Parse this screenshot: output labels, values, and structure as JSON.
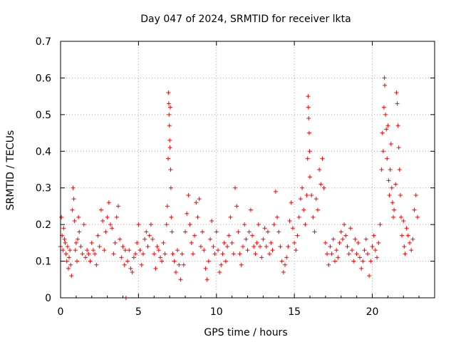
{
  "chart_data": {
    "type": "scatter",
    "title": "Day 047 of 2024, SRMTID for receiver lkta",
    "xlabel": "GPS time / hours",
    "ylabel": "SRMTID / TECUs",
    "xlim": [
      0,
      24
    ],
    "ylim": [
      0,
      0.7
    ],
    "xticks": [
      0,
      5,
      10,
      15,
      20
    ],
    "xtick_labels": [
      "0",
      "5",
      "10",
      "15",
      "20"
    ],
    "yticks": [
      0,
      0.1,
      0.2,
      0.3,
      0.4,
      0.5,
      0.6,
      0.7
    ],
    "ytick_labels": [
      "0",
      "0.1",
      "0.2",
      "0.3",
      "0.4",
      "0.5",
      "0.6",
      "0.7"
    ],
    "grid": true,
    "marker": "+",
    "color": "#ff0000",
    "series": [
      {
        "name": "SRMTID",
        "points": [
          [
            0.0,
            0.14
          ],
          [
            0.05,
            0.22
          ],
          [
            0.1,
            0.17
          ],
          [
            0.15,
            0.13
          ],
          [
            0.2,
            0.19
          ],
          [
            0.25,
            0.16
          ],
          [
            0.3,
            0.15
          ],
          [
            0.35,
            0.12
          ],
          [
            0.4,
            0.1
          ],
          [
            0.45,
            0.14
          ],
          [
            0.5,
            0.08
          ],
          [
            0.55,
            0.11
          ],
          [
            0.6,
            0.13
          ],
          [
            0.65,
            0.09
          ],
          [
            0.7,
            0.06
          ],
          [
            0.75,
            0.24
          ],
          [
            0.8,
            0.3
          ],
          [
            0.85,
            0.27
          ],
          [
            0.9,
            0.21
          ],
          [
            0.95,
            0.13
          ],
          [
            1.0,
            0.15
          ],
          [
            1.05,
            0.1
          ],
          [
            1.1,
            0.16
          ],
          [
            1.15,
            0.22
          ],
          [
            1.2,
            0.18
          ],
          [
            1.3,
            0.14
          ],
          [
            1.4,
            0.12
          ],
          [
            1.5,
            0.2
          ],
          [
            1.6,
            0.11
          ],
          [
            1.7,
            0.13
          ],
          [
            1.8,
            0.12
          ],
          [
            1.9,
            0.1
          ],
          [
            2.0,
            0.15
          ],
          [
            2.1,
            0.13
          ],
          [
            2.2,
            0.12
          ],
          [
            2.3,
            0.09
          ],
          [
            2.4,
            0.17
          ],
          [
            2.5,
            0.14
          ],
          [
            2.6,
            0.24
          ],
          [
            2.7,
            0.21
          ],
          [
            2.8,
            0.13
          ],
          [
            2.9,
            0.18
          ],
          [
            3.0,
            0.22
          ],
          [
            3.1,
            0.26
          ],
          [
            3.2,
            0.2
          ],
          [
            3.3,
            0.19
          ],
          [
            3.4,
            0.12
          ],
          [
            3.5,
            0.15
          ],
          [
            3.6,
            0.22
          ],
          [
            3.7,
            0.25
          ],
          [
            3.8,
            0.16
          ],
          [
            3.9,
            0.11
          ],
          [
            4.0,
            0.14
          ],
          [
            4.1,
            0.09
          ],
          [
            4.15,
            0.13
          ],
          [
            4.2,
            0.0
          ],
          [
            4.3,
            0.1
          ],
          [
            4.4,
            0.13
          ],
          [
            4.5,
            0.08
          ],
          [
            4.6,
            0.07
          ],
          [
            4.7,
            0.11
          ],
          [
            4.8,
            0.12
          ],
          [
            4.9,
            0.15
          ],
          [
            5.0,
            0.2
          ],
          [
            5.1,
            0.13
          ],
          [
            5.2,
            0.09
          ],
          [
            5.3,
            0.12
          ],
          [
            5.4,
            0.16
          ],
          [
            5.5,
            0.18
          ],
          [
            5.6,
            0.14
          ],
          [
            5.7,
            0.17
          ],
          [
            5.8,
            0.2
          ],
          [
            5.9,
            0.16
          ],
          [
            6.0,
            0.12
          ],
          [
            6.1,
            0.08
          ],
          [
            6.2,
            0.14
          ],
          [
            6.3,
            0.13
          ],
          [
            6.4,
            0.11
          ],
          [
            6.5,
            0.1
          ],
          [
            6.6,
            0.15
          ],
          [
            6.7,
            0.12
          ],
          [
            6.8,
            0.2
          ],
          [
            6.85,
            0.25
          ],
          [
            6.9,
            0.38
          ],
          [
            6.92,
            0.56
          ],
          [
            6.94,
            0.53
          ],
          [
            6.96,
            0.5
          ],
          [
            6.98,
            0.47
          ],
          [
            7.0,
            0.43
          ],
          [
            7.02,
            0.41
          ],
          [
            7.04,
            0.52
          ],
          [
            7.06,
            0.35
          ],
          [
            7.08,
            0.3
          ],
          [
            7.1,
            0.22
          ],
          [
            7.15,
            0.18
          ],
          [
            7.2,
            0.12
          ],
          [
            7.3,
            0.1
          ],
          [
            7.4,
            0.07
          ],
          [
            7.5,
            0.13
          ],
          [
            7.6,
            0.09
          ],
          [
            7.7,
            0.05
          ],
          [
            7.8,
            0.12
          ],
          [
            7.9,
            0.09
          ],
          [
            8.0,
            0.18
          ],
          [
            8.1,
            0.23
          ],
          [
            8.2,
            0.28
          ],
          [
            8.3,
            0.2
          ],
          [
            8.4,
            0.15
          ],
          [
            8.5,
            0.12
          ],
          [
            8.6,
            0.17
          ],
          [
            8.7,
            0.26
          ],
          [
            8.8,
            0.22
          ],
          [
            8.9,
            0.27
          ],
          [
            9.0,
            0.14
          ],
          [
            9.1,
            0.18
          ],
          [
            9.2,
            0.13
          ],
          [
            9.3,
            0.08
          ],
          [
            9.4,
            0.05
          ],
          [
            9.5,
            0.1
          ],
          [
            9.6,
            0.16
          ],
          [
            9.7,
            0.21
          ],
          [
            9.8,
            0.14
          ],
          [
            9.9,
            0.12
          ],
          [
            10.0,
            0.18
          ],
          [
            10.1,
            0.13
          ],
          [
            10.2,
            0.07
          ],
          [
            10.3,
            0.09
          ],
          [
            10.4,
            0.12
          ],
          [
            10.5,
            0.15
          ],
          [
            10.6,
            0.1
          ],
          [
            10.7,
            0.14
          ],
          [
            10.8,
            0.17
          ],
          [
            10.9,
            0.22
          ],
          [
            11.0,
            0.15
          ],
          [
            11.1,
            0.12
          ],
          [
            11.2,
            0.3
          ],
          [
            11.3,
            0.25
          ],
          [
            11.4,
            0.18
          ],
          [
            11.5,
            0.12
          ],
          [
            11.6,
            0.09
          ],
          [
            11.7,
            0.14
          ],
          [
            11.8,
            0.2
          ],
          [
            11.9,
            0.16
          ],
          [
            12.0,
            0.13
          ],
          [
            12.1,
            0.18
          ],
          [
            12.2,
            0.24
          ],
          [
            12.3,
            0.17
          ],
          [
            12.4,
            0.14
          ],
          [
            12.5,
            0.12
          ],
          [
            12.6,
            0.15
          ],
          [
            12.7,
            0.2
          ],
          [
            12.8,
            0.14
          ],
          [
            12.9,
            0.11
          ],
          [
            13.0,
            0.16
          ],
          [
            13.1,
            0.19
          ],
          [
            13.2,
            0.14
          ],
          [
            13.3,
            0.18
          ],
          [
            13.4,
            0.12
          ],
          [
            13.5,
            0.15
          ],
          [
            13.6,
            0.13
          ],
          [
            13.7,
            0.2
          ],
          [
            13.8,
            0.29
          ],
          [
            13.9,
            0.22
          ],
          [
            14.0,
            0.18
          ],
          [
            14.1,
            0.14
          ],
          [
            14.2,
            0.1
          ],
          [
            14.3,
            0.07
          ],
          [
            14.4,
            0.09
          ],
          [
            14.5,
            0.11
          ],
          [
            14.6,
            0.14
          ],
          [
            14.7,
            0.21
          ],
          [
            14.8,
            0.26
          ],
          [
            14.9,
            0.19
          ],
          [
            15.0,
            0.15
          ],
          [
            15.1,
            0.13
          ],
          [
            15.2,
            0.17
          ],
          [
            15.3,
            0.22
          ],
          [
            15.4,
            0.27
          ],
          [
            15.5,
            0.3
          ],
          [
            15.6,
            0.24
          ],
          [
            15.7,
            0.2
          ],
          [
            15.8,
            0.28
          ],
          [
            15.85,
            0.38
          ],
          [
            15.88,
            0.55
          ],
          [
            15.9,
            0.52
          ],
          [
            15.92,
            0.49
          ],
          [
            15.95,
            0.45
          ],
          [
            15.98,
            0.4
          ],
          [
            16.0,
            0.33
          ],
          [
            16.1,
            0.28
          ],
          [
            16.2,
            0.22
          ],
          [
            16.3,
            0.18
          ],
          [
            16.4,
            0.27
          ],
          [
            16.5,
            0.24
          ],
          [
            16.6,
            0.35
          ],
          [
            16.7,
            0.31
          ],
          [
            16.8,
            0.38
          ],
          [
            16.9,
            0.3
          ],
          [
            17.0,
            0.15
          ],
          [
            17.1,
            0.12
          ],
          [
            17.2,
            0.09
          ],
          [
            17.3,
            0.14
          ],
          [
            17.4,
            0.12
          ],
          [
            17.5,
            0.16
          ],
          [
            17.6,
            0.1
          ],
          [
            17.7,
            0.13
          ],
          [
            17.8,
            0.11
          ],
          [
            17.9,
            0.15
          ],
          [
            18.0,
            0.18
          ],
          [
            18.1,
            0.16
          ],
          [
            18.2,
            0.2
          ],
          [
            18.3,
            0.17
          ],
          [
            18.4,
            0.14
          ],
          [
            18.5,
            0.12
          ],
          [
            18.6,
            0.19
          ],
          [
            18.7,
            0.13
          ],
          [
            18.8,
            0.1
          ],
          [
            18.9,
            0.16
          ],
          [
            19.0,
            0.12
          ],
          [
            19.1,
            0.15
          ],
          [
            19.2,
            0.11
          ],
          [
            19.3,
            0.08
          ],
          [
            19.4,
            0.1
          ],
          [
            19.5,
            0.13
          ],
          [
            19.6,
            0.16
          ],
          [
            19.7,
            0.12
          ],
          [
            19.8,
            0.06
          ],
          [
            19.9,
            0.1
          ],
          [
            20.0,
            0.14
          ],
          [
            20.1,
            0.17
          ],
          [
            20.2,
            0.13
          ],
          [
            20.3,
            0.11
          ],
          [
            20.4,
            0.15
          ],
          [
            20.5,
            0.2
          ],
          [
            20.6,
            0.35
          ],
          [
            20.65,
            0.45
          ],
          [
            20.7,
            0.4
          ],
          [
            20.75,
            0.52
          ],
          [
            20.78,
            0.6
          ],
          [
            20.8,
            0.58
          ],
          [
            20.85,
            0.5
          ],
          [
            20.9,
            0.46
          ],
          [
            20.95,
            0.38
          ],
          [
            21.0,
            0.47
          ],
          [
            21.05,
            0.32
          ],
          [
            21.1,
            0.28
          ],
          [
            21.15,
            0.35
          ],
          [
            21.2,
            0.42
          ],
          [
            21.25,
            0.3
          ],
          [
            21.3,
            0.26
          ],
          [
            21.35,
            0.22
          ],
          [
            21.4,
            0.24
          ],
          [
            21.5,
            0.31
          ],
          [
            21.55,
            0.56
          ],
          [
            21.6,
            0.53
          ],
          [
            21.65,
            0.47
          ],
          [
            21.7,
            0.41
          ],
          [
            21.75,
            0.35
          ],
          [
            21.8,
            0.28
          ],
          [
            21.85,
            0.22
          ],
          [
            21.9,
            0.17
          ],
          [
            22.0,
            0.21
          ],
          [
            22.05,
            0.14
          ],
          [
            22.1,
            0.12
          ],
          [
            22.2,
            0.19
          ],
          [
            22.3,
            0.17
          ],
          [
            22.4,
            0.15
          ],
          [
            22.5,
            0.13
          ],
          [
            22.6,
            0.16
          ],
          [
            22.7,
            0.24
          ],
          [
            22.8,
            0.28
          ],
          [
            22.9,
            0.22
          ]
        ]
      }
    ]
  }
}
